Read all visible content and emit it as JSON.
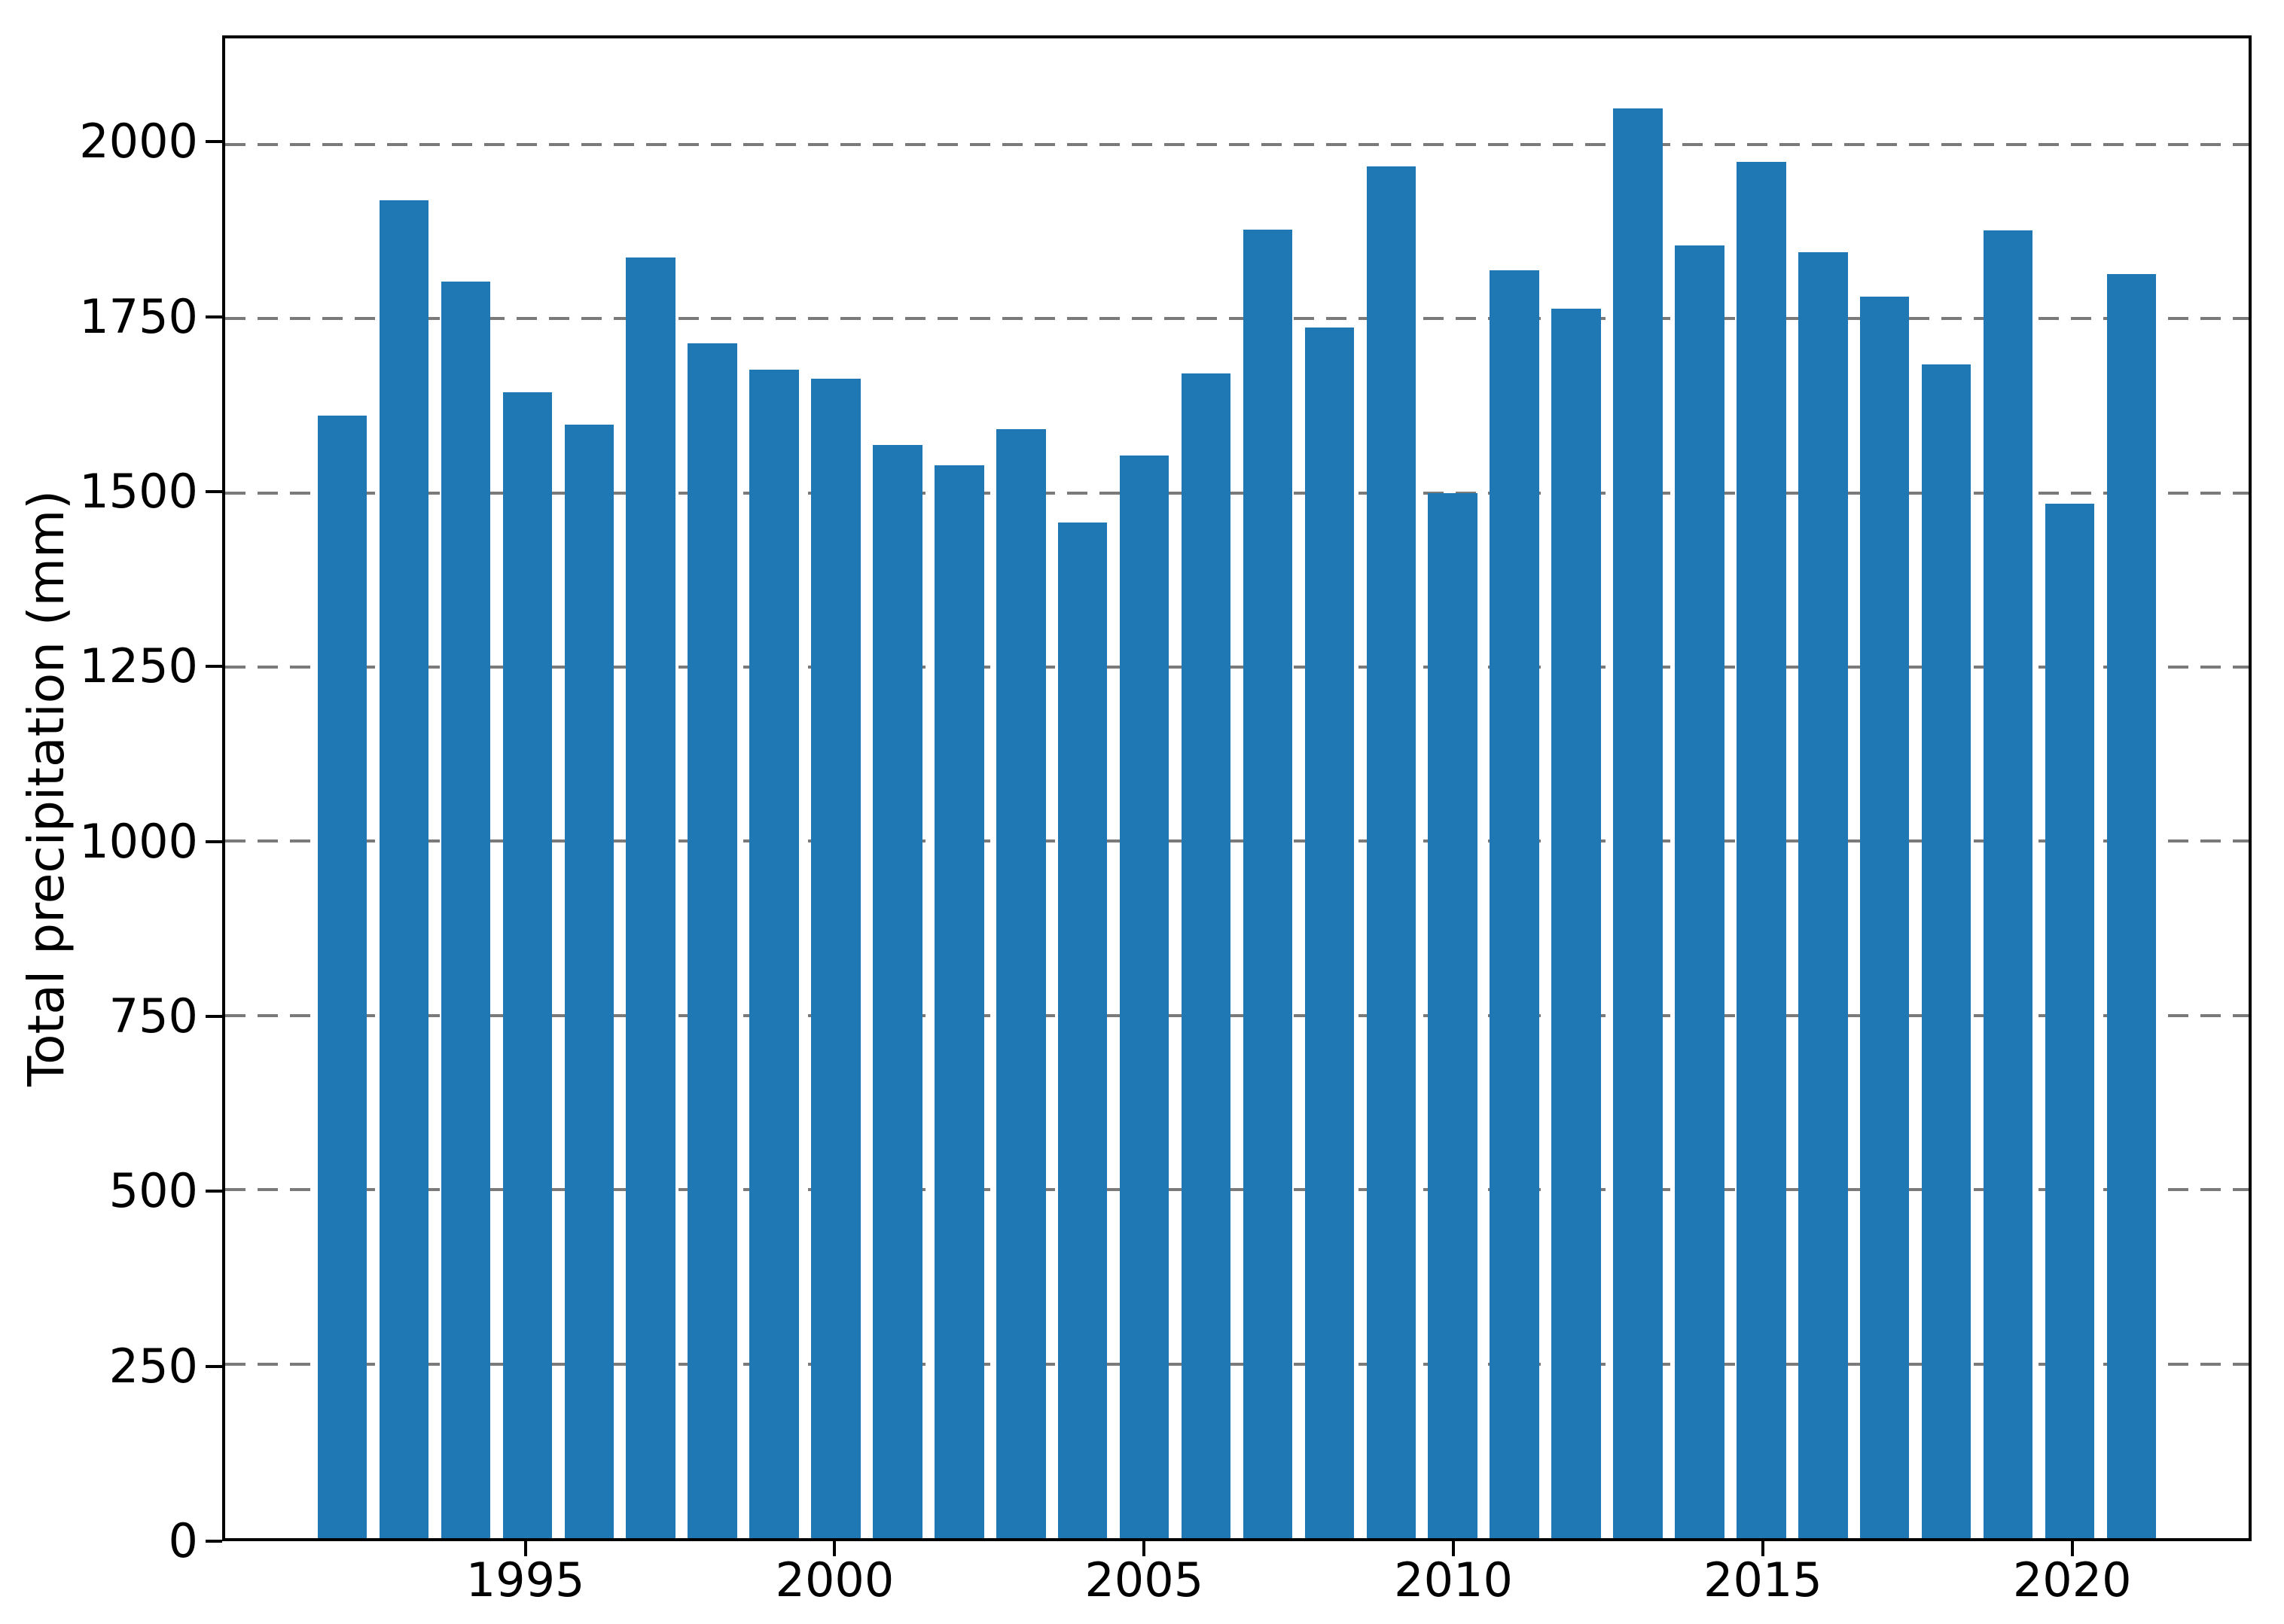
{
  "figure": {
    "background": "#ffffff",
    "bar_color": "#1f77b4",
    "grid_color": "#7a7a7a",
    "spine_color": "#000000",
    "text_color": "#000000"
  },
  "chart_data": {
    "type": "bar",
    "title": "",
    "xlabel": "",
    "ylabel": "Total precipitation (mm)",
    "categories": [
      1992,
      1993,
      1994,
      1995,
      1996,
      1997,
      1998,
      1999,
      2000,
      2001,
      2002,
      2003,
      2004,
      2005,
      2006,
      2007,
      2008,
      2009,
      2010,
      2011,
      2012,
      2013,
      2014,
      2015,
      2016,
      2017,
      2018,
      2019,
      2020,
      2021
    ],
    "values": [
      1611,
      1920,
      1803,
      1644,
      1598,
      1838,
      1714,
      1677,
      1664,
      1569,
      1540,
      1591,
      1457,
      1554,
      1671,
      1878,
      1737,
      1968,
      1500,
      1819,
      1764,
      2052,
      1855,
      1975,
      1845,
      1781,
      1684,
      1877,
      1484,
      1814
    ],
    "bar_width_units": 0.8,
    "xlim": [
      1990.1,
      2022.9
    ],
    "ylim": [
      0,
      2152
    ],
    "yticks": [
      0,
      250,
      500,
      750,
      1000,
      1250,
      1500,
      1750,
      2000
    ],
    "xticks": [
      1995,
      2000,
      2005,
      2010,
      2015,
      2020
    ],
    "grid": "horizontal-dashed",
    "legend": "none"
  }
}
